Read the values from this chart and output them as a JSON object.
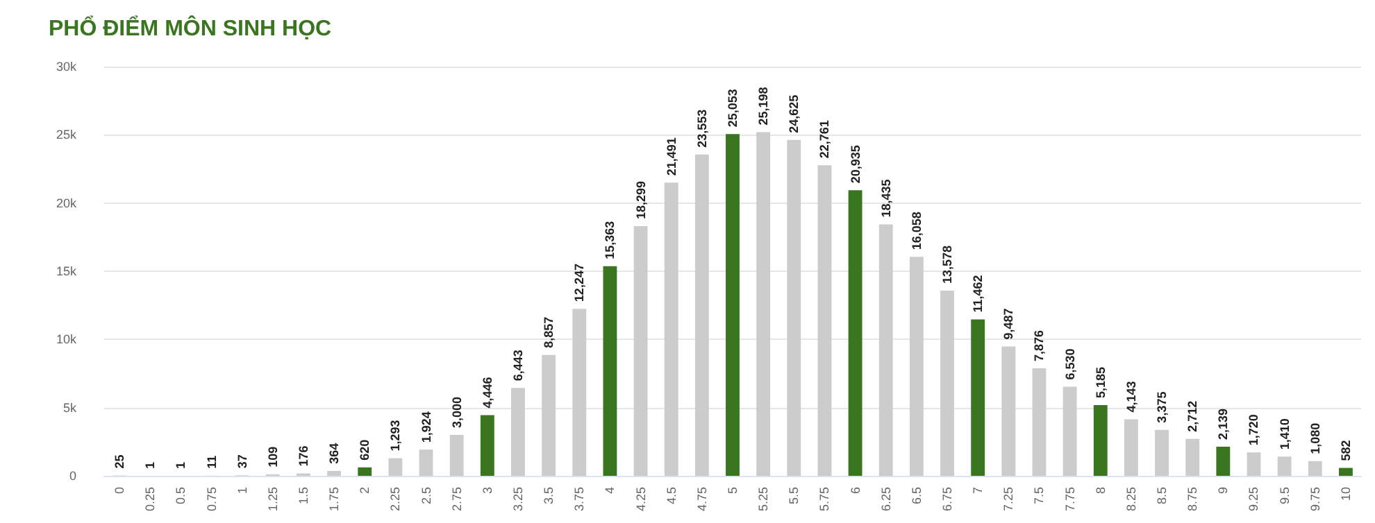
{
  "chart_data": {
    "type": "bar",
    "title": "PHỔ ĐIỂM MÔN SINH HỌC",
    "categories": [
      "0",
      "0.25",
      "0.5",
      "0.75",
      "1",
      "1.25",
      "1.5",
      "1.75",
      "2",
      "2.25",
      "2.5",
      "2.75",
      "3",
      "3.25",
      "3.5",
      "3.75",
      "4",
      "4.25",
      "4.5",
      "4.75",
      "5",
      "5.25",
      "5.5",
      "5.75",
      "6",
      "6.25",
      "6.5",
      "6.75",
      "7",
      "7.25",
      "7.5",
      "7.75",
      "8",
      "8.25",
      "8.5",
      "8.75",
      "9",
      "9.25",
      "9.5",
      "9.75",
      "10"
    ],
    "values": [
      25,
      1,
      1,
      11,
      37,
      109,
      176,
      364,
      620,
      1293,
      1924,
      3000,
      4446,
      6443,
      8857,
      12247,
      15363,
      18299,
      21491,
      23553,
      25053,
      25198,
      24625,
      22761,
      20935,
      18435,
      16058,
      13578,
      11462,
      9487,
      7876,
      6530,
      5185,
      4143,
      3375,
      2712,
      2139,
      1720,
      1410,
      1080,
      582
    ],
    "value_labels": [
      "25",
      "1",
      "1",
      "11",
      "37",
      "109",
      "176",
      "364",
      "620",
      "1,293",
      "1,924",
      "3,000",
      "4,446",
      "6,443",
      "8,857",
      "12,247",
      "15,363",
      "18,299",
      "21,491",
      "23,553",
      "25,053",
      "25,198",
      "24,625",
      "22,761",
      "20,935",
      "18,435",
      "16,058",
      "13,578",
      "11,462",
      "9,487",
      "7,876",
      "6,530",
      "5,185",
      "4,143",
      "3,375",
      "2,712",
      "2,139",
      "1,720",
      "1,410",
      "1,080",
      "582"
    ],
    "colors": [
      "#cccccc",
      "#cccccc",
      "#cccccc",
      "#cccccc",
      "#cccccc",
      "#cccccc",
      "#cccccc",
      "#cccccc",
      "#3a7520",
      "#cccccc",
      "#cccccc",
      "#cccccc",
      "#3a7520",
      "#cccccc",
      "#cccccc",
      "#cccccc",
      "#3a7520",
      "#cccccc",
      "#cccccc",
      "#cccccc",
      "#3a7520",
      "#cccccc",
      "#cccccc",
      "#cccccc",
      "#3a7520",
      "#cccccc",
      "#cccccc",
      "#cccccc",
      "#3a7520",
      "#cccccc",
      "#cccccc",
      "#cccccc",
      "#3a7520",
      "#cccccc",
      "#cccccc",
      "#cccccc",
      "#3a7520",
      "#cccccc",
      "#cccccc",
      "#cccccc",
      "#3a7520"
    ],
    "ylim": [
      0,
      30000
    ],
    "yticks": [
      0,
      {
        "value": 5000,
        "label": "5k"
      },
      {
        "value": 10000,
        "label": "10k"
      },
      {
        "value": 15000,
        "label": "15k"
      },
      {
        "value": 20000,
        "label": "20k"
      },
      {
        "value": 25000,
        "label": "25k"
      },
      {
        "value": 30000,
        "label": "30k"
      }
    ],
    "grid": "y"
  }
}
